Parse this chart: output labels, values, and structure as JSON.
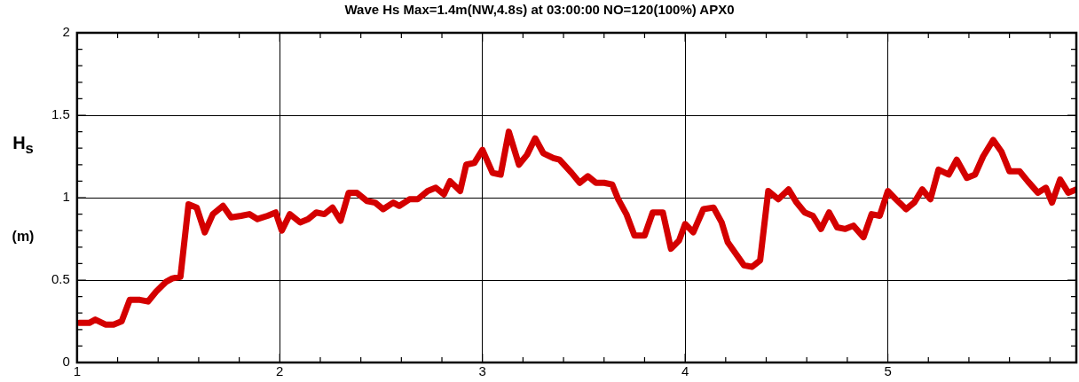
{
  "chart_data": {
    "type": "line",
    "title": "Wave Hs Max=1.4m(NW,4.8s) at 03:00:00 NO=120(100%) APX0",
    "ylabel": "H$_{s}$\n(m)",
    "xlim": [
      1,
      5.93
    ],
    "ylim": [
      0,
      2
    ],
    "xticks": [
      1,
      {
        "value": 1.2,
        "label": null
      },
      {
        "value": 1.4,
        "label": null
      },
      {
        "value": 1.6,
        "label": null
      },
      {
        "value": 1.8,
        "label": null
      },
      2,
      {
        "value": 2.2,
        "label": null
      },
      {
        "value": 2.4,
        "label": null
      },
      {
        "value": 2.6,
        "label": null
      },
      {
        "value": 2.8,
        "label": null
      },
      3,
      {
        "value": 3.2,
        "label": null
      },
      {
        "value": 3.4,
        "label": null
      },
      {
        "value": 3.6,
        "label": null
      },
      {
        "value": 3.8,
        "label": null
      },
      4,
      {
        "value": 4.2,
        "label": null
      },
      {
        "value": 4.4,
        "label": null
      },
      {
        "value": 4.6,
        "label": null
      },
      {
        "value": 4.8,
        "label": null
      },
      5,
      {
        "value": 5.2,
        "label": null
      },
      {
        "value": 5.4,
        "label": null
      },
      {
        "value": 5.6,
        "label": null
      },
      {
        "value": 5.8,
        "label": null
      }
    ],
    "yticks": [
      0,
      {
        "value": 0.1,
        "label": null
      },
      {
        "value": 0.2,
        "label": null
      },
      {
        "value": 0.3,
        "label": null
      },
      {
        "value": 0.4,
        "label": null
      },
      0.5,
      {
        "value": 0.6,
        "label": null
      },
      {
        "value": 0.7,
        "label": null
      },
      {
        "value": 0.8,
        "label": null
      },
      {
        "value": 0.9,
        "label": null
      },
      1,
      {
        "value": 1.1,
        "label": null
      },
      {
        "value": 1.2,
        "label": null
      },
      {
        "value": 1.3,
        "label": null
      },
      {
        "value": 1.4,
        "label": null
      },
      1.5,
      {
        "value": 1.6,
        "label": null
      },
      {
        "value": 1.7,
        "label": null
      },
      {
        "value": 1.8,
        "label": null
      },
      {
        "value": 1.9,
        "label": null
      },
      2
    ],
    "grid": true,
    "marker": "none",
    "line_style": "solid",
    "series": [
      {
        "color": "#d40000",
        "x": [
          1.01,
          1.06,
          1.09,
          1.14,
          1.18,
          1.22,
          1.26,
          1.31,
          1.35,
          1.39,
          1.44,
          1.47,
          1.51,
          1.55,
          1.59,
          1.63,
          1.67,
          1.72,
          1.76,
          1.81,
          1.85,
          1.89,
          1.94,
          1.98,
          2.01,
          2.05,
          2.1,
          2.14,
          2.18,
          2.22,
          2.26,
          2.3,
          2.34,
          2.38,
          2.43,
          2.47,
          2.51,
          2.56,
          2.59,
          2.64,
          2.68,
          2.73,
          2.77,
          2.81,
          2.84,
          2.89,
          2.92,
          2.96,
          3.0,
          3.05,
          3.09,
          3.13,
          3.18,
          3.22,
          3.26,
          3.3,
          3.35,
          3.38,
          3.44,
          3.48,
          3.52,
          3.56,
          3.6,
          3.64,
          3.67,
          3.71,
          3.75,
          3.8,
          3.84,
          3.89,
          3.93,
          3.97,
          4.0,
          4.04,
          4.09,
          4.14,
          4.18,
          4.21,
          4.25,
          4.29,
          4.33,
          4.37,
          4.41,
          4.46,
          4.51,
          4.55,
          4.59,
          4.63,
          4.67,
          4.71,
          4.75,
          4.79,
          4.83,
          4.88,
          4.92,
          4.96,
          5.0,
          5.04,
          5.09,
          5.13,
          5.17,
          5.21,
          5.25,
          5.3,
          5.34,
          5.39,
          5.43,
          5.47,
          5.52,
          5.56,
          5.6,
          5.65,
          5.69,
          5.74,
          5.78,
          5.81,
          5.85,
          5.89,
          5.93
        ],
        "values": [
          0.24,
          0.24,
          0.26,
          0.23,
          0.23,
          0.25,
          0.38,
          0.38,
          0.37,
          0.43,
          0.49,
          0.51,
          0.52,
          0.96,
          0.94,
          0.79,
          0.9,
          0.95,
          0.88,
          0.89,
          0.9,
          0.87,
          0.89,
          0.91,
          0.8,
          0.9,
          0.85,
          0.87,
          0.91,
          0.9,
          0.94,
          0.86,
          1.03,
          1.03,
          0.98,
          0.97,
          0.93,
          0.97,
          0.95,
          0.99,
          0.99,
          1.04,
          1.06,
          1.02,
          1.1,
          1.04,
          1.2,
          1.21,
          1.29,
          1.15,
          1.14,
          1.4,
          1.2,
          1.26,
          1.36,
          1.27,
          1.24,
          1.23,
          1.15,
          1.09,
          1.13,
          1.09,
          1.09,
          1.08,
          0.99,
          0.9,
          0.77,
          0.77,
          0.91,
          0.91,
          0.69,
          0.74,
          0.84,
          0.79,
          0.93,
          0.94,
          0.85,
          0.73,
          0.66,
          0.59,
          0.58,
          0.62,
          1.04,
          0.99,
          1.05,
          0.97,
          0.91,
          0.89,
          0.81,
          0.91,
          0.82,
          0.81,
          0.83,
          0.76,
          0.9,
          0.89,
          1.04,
          0.99,
          0.93,
          0.97,
          1.05,
          0.99,
          1.17,
          1.14,
          1.23,
          1.12,
          1.14,
          1.25,
          1.35,
          1.28,
          1.16,
          1.16,
          1.1,
          1.03,
          1.06,
          0.97,
          1.11,
          1.03,
          1.05
        ]
      }
    ]
  }
}
